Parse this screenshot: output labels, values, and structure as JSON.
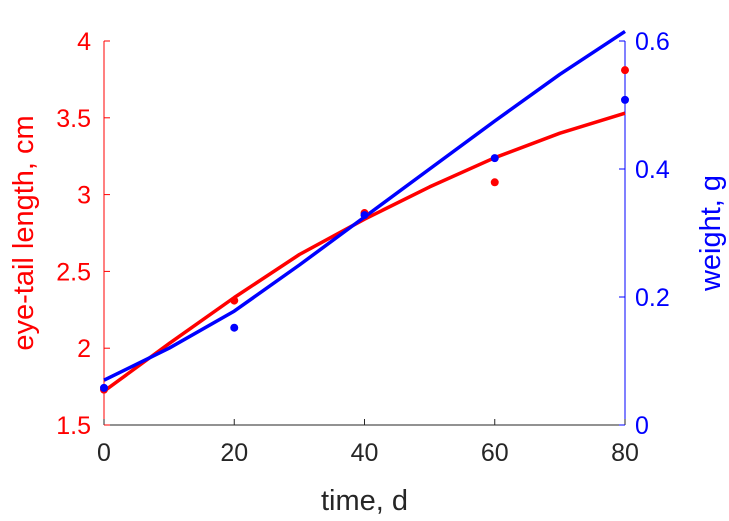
{
  "chart_data": {
    "type": "scatter",
    "title": "",
    "xlabel": "time, d",
    "ylabel_left": "eye-tail length, cm",
    "ylabel_right": "weight, g",
    "xlim": [
      0,
      80
    ],
    "ylim_left": [
      1.5,
      4
    ],
    "ylim_right": [
      0,
      0.6
    ],
    "xticks": [
      "0",
      "20",
      "40",
      "60",
      "80"
    ],
    "yticks_left": [
      "1.5",
      "2",
      "2.5",
      "3",
      "3.5",
      "4"
    ],
    "yticks_right": [
      "0",
      "0.2",
      "0.4",
      "0.6"
    ],
    "grid": false,
    "legend": "none",
    "series": [
      {
        "axis": "left",
        "color": "#ff0000",
        "points": {
          "x": [
            0,
            20,
            40,
            60,
            80
          ],
          "y": [
            1.73,
            2.31,
            2.88,
            3.08,
            3.81
          ]
        },
        "fit": {
          "x": [
            0,
            10,
            20,
            30,
            40,
            50,
            60,
            70,
            80
          ],
          "y": [
            1.72,
            2.03,
            2.33,
            2.61,
            2.84,
            3.05,
            3.24,
            3.4,
            3.53
          ]
        }
      },
      {
        "axis": "right",
        "color": "#0000ff",
        "points": {
          "x": [
            0,
            20,
            40,
            60,
            80
          ],
          "y": [
            0.058,
            0.152,
            0.328,
            0.417,
            0.508
          ]
        },
        "fit": {
          "x": [
            0,
            10,
            20,
            30,
            40,
            50,
            60,
            70,
            80
          ],
          "y": [
            0.07,
            0.12,
            0.178,
            0.25,
            0.325,
            0.4,
            0.475,
            0.548,
            0.615
          ]
        }
      }
    ]
  }
}
